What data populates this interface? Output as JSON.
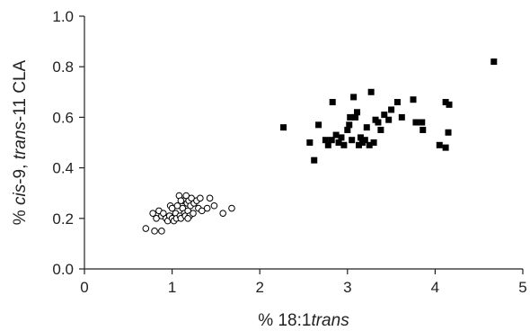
{
  "chart_data": {
    "type": "scatter",
    "xlabel_parts": [
      "% 18:1",
      "trans"
    ],
    "ylabel_parts": [
      "% ",
      "cis",
      "-9, ",
      "trans",
      "-11 CLA"
    ],
    "xlim": [
      0,
      5
    ],
    "ylim": [
      0,
      1.0
    ],
    "x_ticks": [
      0,
      1,
      2,
      3,
      4,
      5
    ],
    "y_ticks": [
      0.0,
      0.2,
      0.4,
      0.6,
      0.8,
      1.0
    ],
    "x_tick_labels": [
      "0",
      "1",
      "2",
      "3",
      "4",
      "5"
    ],
    "y_tick_labels": [
      "0.0",
      "0.2",
      "0.4",
      "0.6",
      "0.8",
      "1.0"
    ],
    "grid": false,
    "legend": false,
    "series": [
      {
        "marker": "open-circle",
        "color": "#000000",
        "points": [
          [
            0.7,
            0.16
          ],
          [
            0.78,
            0.22
          ],
          [
            0.8,
            0.15
          ],
          [
            0.82,
            0.2
          ],
          [
            0.85,
            0.23
          ],
          [
            0.88,
            0.15
          ],
          [
            0.88,
            0.21
          ],
          [
            0.9,
            0.22
          ],
          [
            0.93,
            0.2
          ],
          [
            0.95,
            0.19
          ],
          [
            0.97,
            0.21
          ],
          [
            0.98,
            0.25
          ],
          [
            1.0,
            0.2
          ],
          [
            1.0,
            0.24
          ],
          [
            1.02,
            0.19
          ],
          [
            1.04,
            0.22
          ],
          [
            1.05,
            0.2
          ],
          [
            1.06,
            0.25
          ],
          [
            1.08,
            0.29
          ],
          [
            1.09,
            0.21
          ],
          [
            1.1,
            0.2
          ],
          [
            1.12,
            0.24
          ],
          [
            1.13,
            0.27
          ],
          [
            1.14,
            0.22
          ],
          [
            1.15,
            0.21
          ],
          [
            1.16,
            0.29
          ],
          [
            1.17,
            0.26
          ],
          [
            1.18,
            0.23
          ],
          [
            1.19,
            0.27
          ],
          [
            1.2,
            0.21
          ],
          [
            1.21,
            0.25
          ],
          [
            1.22,
            0.28
          ],
          [
            1.24,
            0.22
          ],
          [
            1.25,
            0.26
          ],
          [
            1.28,
            0.27
          ],
          [
            1.3,
            0.24
          ],
          [
            1.32,
            0.28
          ],
          [
            1.34,
            0.23
          ],
          [
            1.4,
            0.24
          ],
          [
            1.43,
            0.28
          ],
          [
            1.48,
            0.25
          ],
          [
            1.58,
            0.22
          ],
          [
            1.68,
            0.24
          ],
          [
            1.1,
            0.27
          ],
          [
            1.18,
            0.2
          ]
        ]
      },
      {
        "marker": "filled-square",
        "color": "#000000",
        "points": [
          [
            2.27,
            0.56
          ],
          [
            2.57,
            0.5
          ],
          [
            2.62,
            0.43
          ],
          [
            2.67,
            0.57
          ],
          [
            2.75,
            0.51
          ],
          [
            2.78,
            0.49
          ],
          [
            2.82,
            0.51
          ],
          [
            2.83,
            0.66
          ],
          [
            2.87,
            0.53
          ],
          [
            2.9,
            0.5
          ],
          [
            2.93,
            0.52
          ],
          [
            2.96,
            0.49
          ],
          [
            3.0,
            0.55
          ],
          [
            3.02,
            0.57
          ],
          [
            3.03,
            0.6
          ],
          [
            3.05,
            0.51
          ],
          [
            3.07,
            0.68
          ],
          [
            3.09,
            0.6
          ],
          [
            3.11,
            0.62
          ],
          [
            3.13,
            0.49
          ],
          [
            3.15,
            0.52
          ],
          [
            3.17,
            0.5
          ],
          [
            3.2,
            0.51
          ],
          [
            3.22,
            0.56
          ],
          [
            3.25,
            0.49
          ],
          [
            3.27,
            0.7
          ],
          [
            3.3,
            0.5
          ],
          [
            3.32,
            0.59
          ],
          [
            3.35,
            0.58
          ],
          [
            3.38,
            0.55
          ],
          [
            3.42,
            0.61
          ],
          [
            3.47,
            0.59
          ],
          [
            3.5,
            0.63
          ],
          [
            3.57,
            0.66
          ],
          [
            3.62,
            0.6
          ],
          [
            3.75,
            0.67
          ],
          [
            3.78,
            0.58
          ],
          [
            3.85,
            0.58
          ],
          [
            3.86,
            0.55
          ],
          [
            4.05,
            0.49
          ],
          [
            4.12,
            0.48
          ],
          [
            4.12,
            0.66
          ],
          [
            4.15,
            0.54
          ],
          [
            4.16,
            0.65
          ],
          [
            4.67,
            0.82
          ]
        ]
      }
    ]
  }
}
